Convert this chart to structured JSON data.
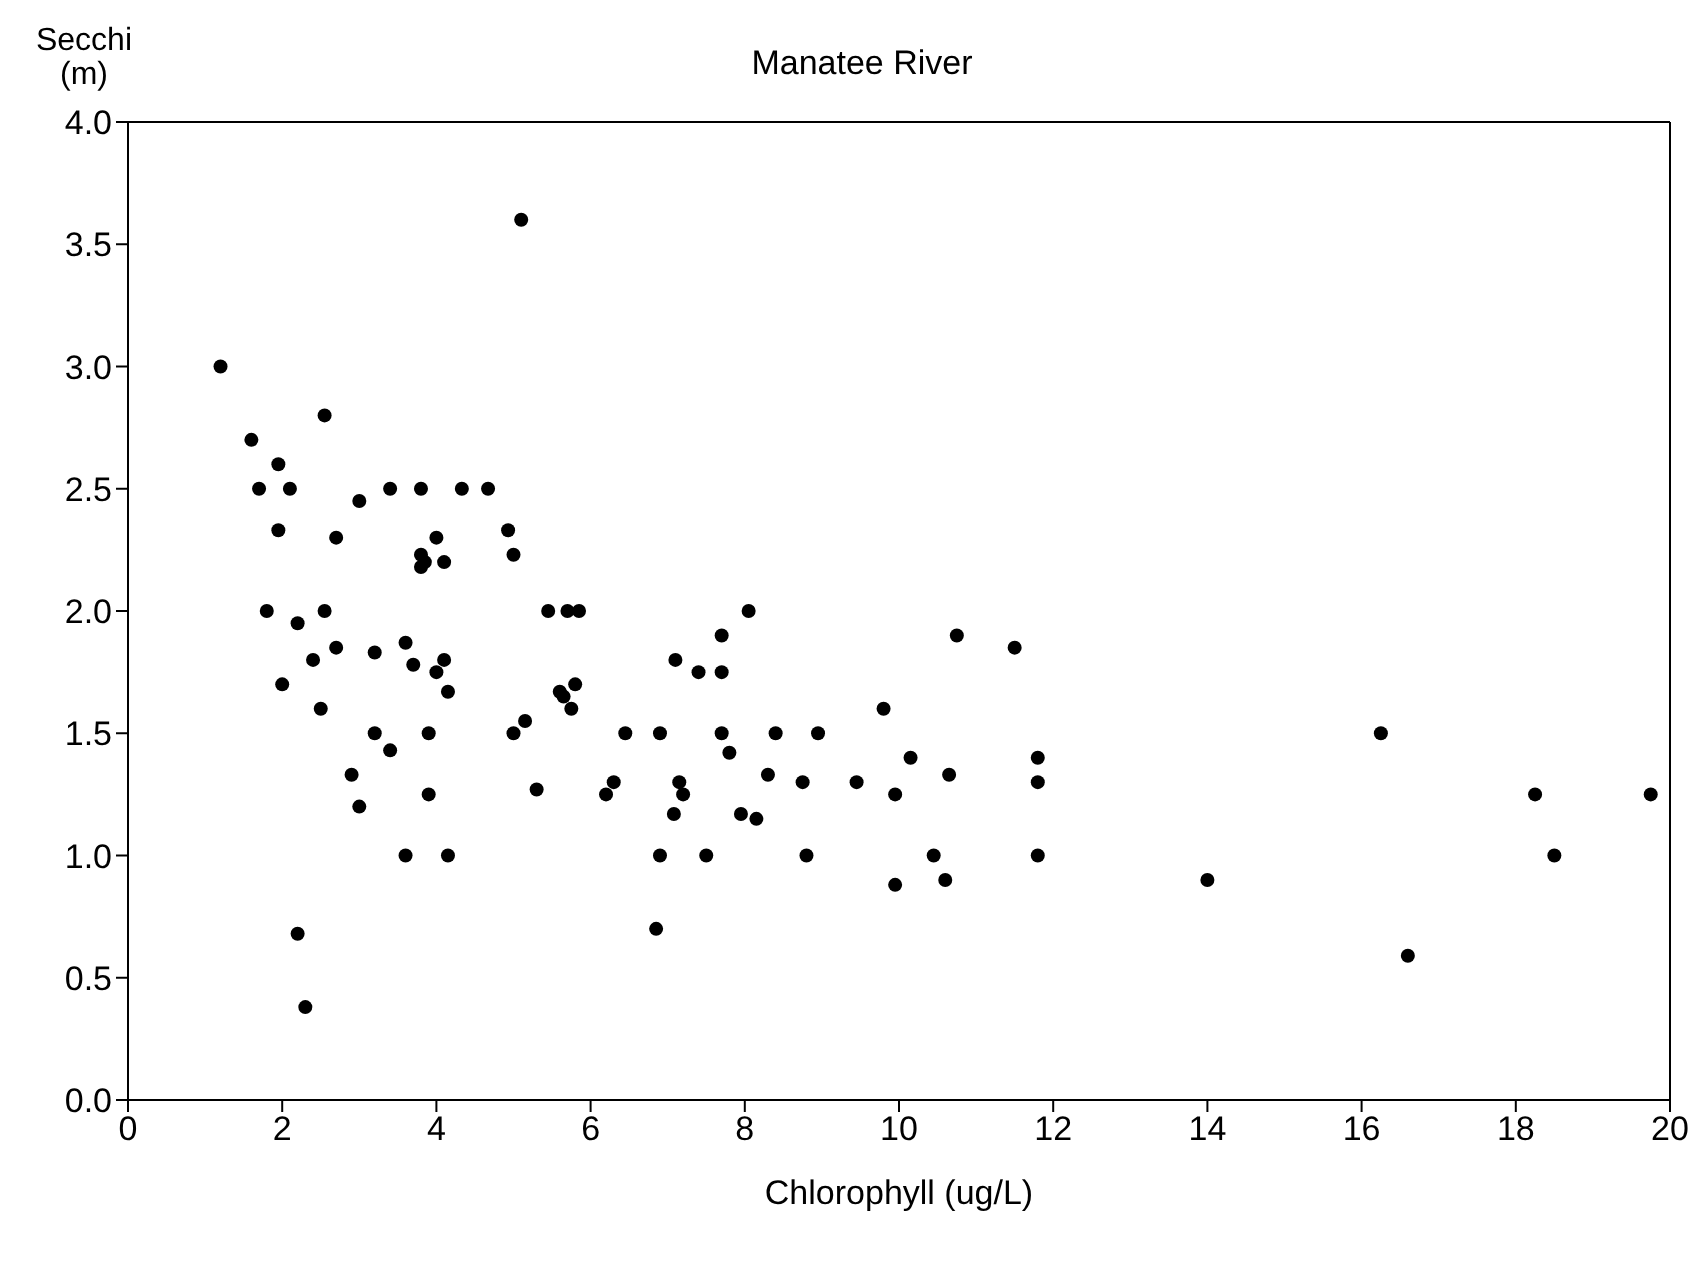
{
  "chart_data": {
    "type": "scatter",
    "title": "Manatee River",
    "xlabel": "Chlorophyll (ug/L)",
    "ylabel": "Secchi\n(m)",
    "x": [
      1.2,
      1.6,
      1.7,
      1.8,
      1.95,
      1.95,
      2.1,
      2.0,
      2.2,
      2.2,
      2.3,
      2.4,
      2.5,
      2.55,
      2.55,
      2.7,
      2.7,
      2.9,
      3.0,
      3.0,
      3.2,
      3.2,
      3.4,
      3.4,
      3.6,
      3.6,
      3.7,
      3.8,
      3.8,
      3.8,
      3.9,
      3.9,
      3.85,
      4.0,
      4.0,
      4.1,
      4.1,
      4.15,
      4.15,
      4.33,
      4.67,
      4.93,
      5.0,
      5.0,
      5.1,
      5.15,
      5.3,
      5.45,
      5.7,
      5.85,
      5.6,
      5.65,
      5.75,
      5.8,
      6.2,
      6.3,
      6.45,
      6.9,
      6.9,
      6.85,
      7.1,
      7.08,
      7.15,
      7.2,
      7.4,
      7.5,
      7.7,
      7.7,
      7.7,
      7.8,
      7.95,
      8.05,
      8.15,
      8.3,
      8.4,
      8.75,
      8.8,
      8.95,
      9.45,
      9.8,
      9.95,
      9.95,
      10.15,
      10.45,
      10.6,
      10.65,
      10.75,
      11.5,
      11.8,
      11.8,
      11.8,
      14.0,
      16.25,
      16.6,
      18.25,
      18.5,
      19.75
    ],
    "values": [
      3.0,
      2.7,
      2.5,
      2.0,
      2.33,
      2.6,
      2.5,
      1.7,
      1.95,
      0.68,
      0.38,
      1.8,
      1.6,
      2.0,
      2.8,
      2.3,
      1.85,
      1.33,
      1.2,
      2.45,
      1.83,
      1.5,
      2.5,
      1.43,
      1.87,
      1.0,
      1.78,
      2.5,
      2.23,
      2.18,
      1.5,
      1.25,
      2.2,
      1.75,
      2.3,
      2.2,
      1.8,
      1.67,
      1.0,
      2.5,
      2.5,
      2.33,
      2.23,
      1.5,
      3.6,
      1.55,
      1.27,
      2.0,
      2.0,
      2.0,
      1.67,
      1.65,
      1.6,
      1.7,
      1.25,
      1.3,
      1.5,
      1.5,
      1.0,
      0.7,
      1.8,
      1.17,
      1.3,
      1.25,
      1.75,
      1.0,
      1.9,
      1.75,
      1.5,
      1.42,
      1.17,
      2.0,
      1.15,
      1.33,
      1.5,
      1.3,
      1.0,
      1.5,
      1.3,
      1.6,
      1.25,
      0.88,
      1.4,
      1.0,
      0.9,
      1.33,
      1.9,
      1.85,
      1.3,
      1.4,
      1.0,
      0.9,
      1.5,
      0.59,
      1.25,
      1.0,
      1.25
    ],
    "color": "#000000",
    "marker": "circle",
    "xlim": [
      0,
      20
    ],
    "xticks": [
      0,
      2,
      4,
      6,
      8,
      10,
      12,
      14,
      16,
      18,
      20
    ],
    "ylim": [
      0,
      4
    ],
    "yticks": [
      {
        "value": 0,
        "label": "0.0"
      },
      {
        "value": 0.5,
        "label": "0.5"
      },
      {
        "value": 1,
        "label": "1.0"
      },
      {
        "value": 1.5,
        "label": "1.5"
      },
      {
        "value": 2,
        "label": "2.0"
      },
      {
        "value": 2.5,
        "label": "2.5"
      },
      {
        "value": 3,
        "label": "3.0"
      },
      {
        "value": 3.5,
        "label": "3.5"
      },
      {
        "value": 4,
        "label": "4.0"
      }
    ],
    "legend": false
  }
}
